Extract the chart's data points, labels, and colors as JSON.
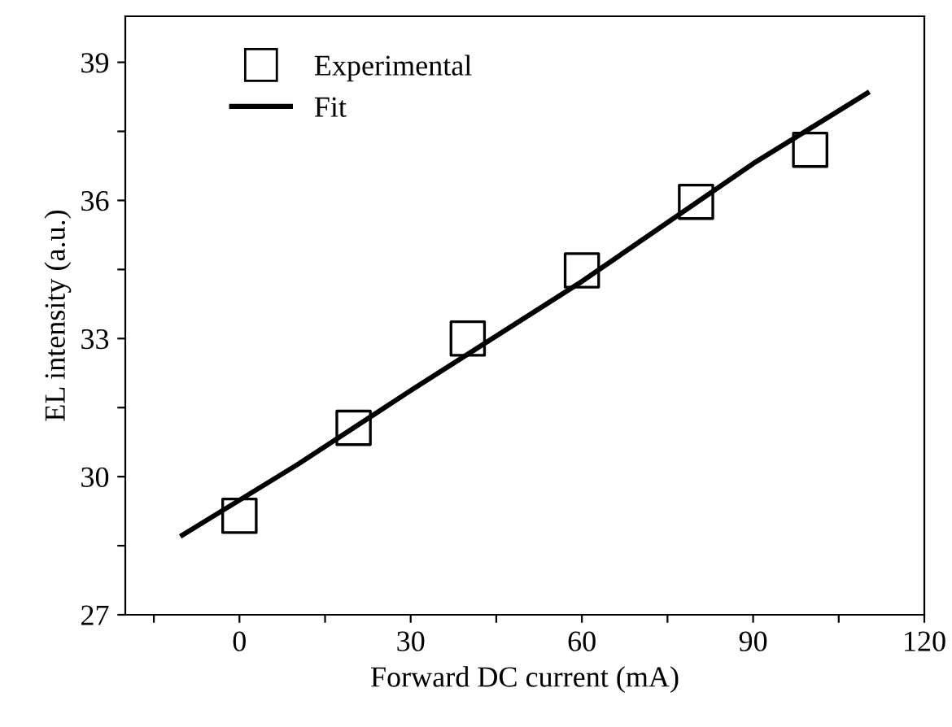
{
  "chart_data": {
    "type": "scatter",
    "xlabel": "Forward DC current (mA)",
    "ylabel": "EL intensity (a.u.)",
    "x": [
      0,
      20,
      40,
      60,
      80,
      100
    ],
    "series": [
      {
        "name": "Experimental",
        "color": "#000000",
        "marker": "square",
        "values": [
          29.15,
          31.06,
          33.0,
          34.48,
          35.97,
          37.1
        ]
      },
      {
        "name": "Fit",
        "type": "line",
        "color": "#000000",
        "marker": "none",
        "line_style": "solid",
        "x": [
          -10,
          10,
          30,
          60,
          90,
          110
        ],
        "values": [
          28.73,
          30.25,
          31.87,
          34.24,
          36.8,
          38.33
        ]
      }
    ],
    "xlim": [
      -20,
      120
    ],
    "ylim": [
      27,
      40
    ],
    "xticks": [
      {
        "value": -15,
        "label": null
      },
      0,
      {
        "value": 15,
        "label": null
      },
      30,
      {
        "value": 45,
        "label": null
      },
      60,
      {
        "value": 75,
        "label": null
      },
      90,
      {
        "value": 105,
        "label": null
      },
      120
    ],
    "yticks": [
      27,
      {
        "value": 28.5,
        "label": null
      },
      30,
      {
        "value": 31.5,
        "label": null
      },
      33,
      {
        "value": 34.5,
        "label": null
      },
      36,
      {
        "value": 37.5,
        "label": null
      },
      39
    ],
    "grid": false,
    "legend": "top left"
  }
}
